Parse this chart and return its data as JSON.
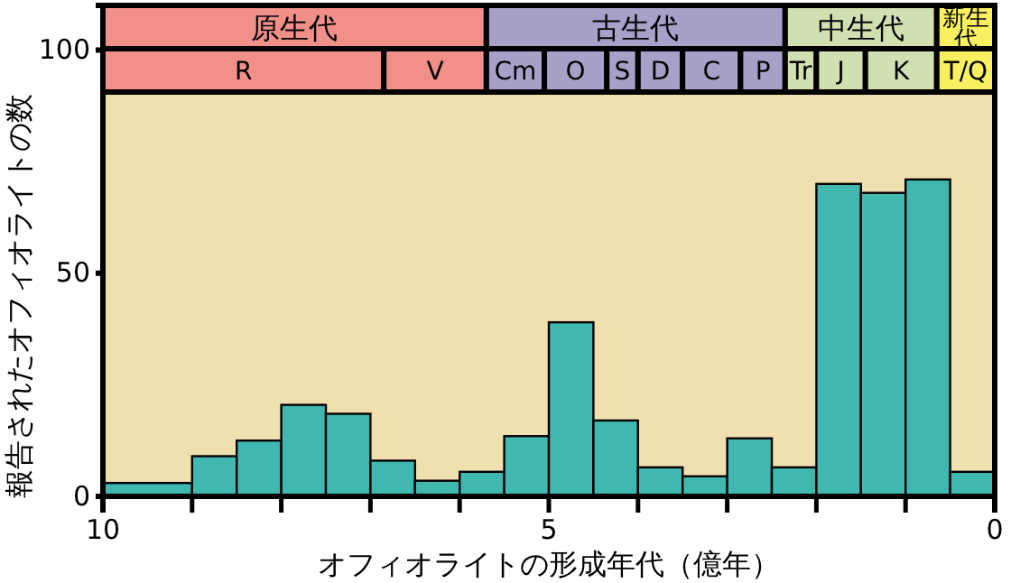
{
  "chart_data": {
    "type": "histogram",
    "xlabel": "オフィオライトの形成年代（億年）",
    "ylabel": "報告されたオフィオライトの数",
    "bins": [
      10,
      9,
      8.5,
      8,
      7.5,
      7,
      6.5,
      6,
      5.5,
      5,
      4.5,
      4,
      3.5,
      3,
      2.5,
      2,
      1.5,
      1,
      0.5,
      0
    ],
    "values": [
      3,
      9,
      12.5,
      20.5,
      18.5,
      8,
      3.5,
      5.5,
      13.5,
      39,
      17,
      6.5,
      4.5,
      13,
      6.5,
      70,
      68,
      71,
      5.5
    ],
    "color": "#40b8b0",
    "xlim": [
      10,
      0
    ],
    "xticks": [
      10,
      {
        "value": 9,
        "label": null
      },
      {
        "value": 8,
        "label": null
      },
      {
        "value": 7,
        "label": null
      },
      {
        "value": 6,
        "label": null
      },
      5,
      {
        "value": 4,
        "label": null
      },
      {
        "value": 3,
        "label": null
      },
      {
        "value": 2,
        "label": null
      },
      {
        "value": 1,
        "label": null
      },
      0
    ],
    "ylim": [
      0,
      110
    ],
    "yticks": [
      0,
      50,
      100
    ],
    "bands": [
      {
        "axis": "x",
        "from": 10,
        "to": 5.7,
        "label": "原生代",
        "color": "#f09088"
      },
      {
        "axis": "x",
        "from": 5.7,
        "to": 2.35,
        "label": "古生代",
        "color": "#a8a0c8"
      },
      {
        "axis": "x",
        "from": 2.35,
        "to": 0.65,
        "label": "中生代",
        "color": "#d0e0b0"
      },
      {
        "axis": "x",
        "from": 0.65,
        "to": 0,
        "label": "新生代",
        "color": "#f8f060"
      },
      {
        "axis": "x",
        "from": 10,
        "to": 6.85,
        "label": "R",
        "color": "#f09088"
      },
      {
        "axis": "x",
        "from": 6.85,
        "to": 5.7,
        "label": "V",
        "color": "#f09088"
      },
      {
        "axis": "x",
        "from": 5.7,
        "to": 5.05,
        "label": "Cm",
        "color": "#a8a0c8"
      },
      {
        "axis": "x",
        "from": 5.05,
        "to": 4.35,
        "label": "O",
        "color": "#a8a0c8"
      },
      {
        "axis": "x",
        "from": 4.35,
        "to": 4.0,
        "label": "S",
        "color": "#a8a0c8"
      },
      {
        "axis": "x",
        "from": 4.0,
        "to": 3.5,
        "label": "D",
        "color": "#a8a0c8"
      },
      {
        "axis": "x",
        "from": 3.5,
        "to": 2.85,
        "label": "C",
        "color": "#a8a0c8"
      },
      {
        "axis": "x",
        "from": 2.85,
        "to": 2.35,
        "label": "P",
        "color": "#a8a0c8"
      },
      {
        "axis": "x",
        "from": 2.35,
        "to": 2.0,
        "label": "Tr",
        "color": "#d0e0b0"
      },
      {
        "axis": "x",
        "from": 2.0,
        "to": 1.45,
        "label": "J",
        "color": "#d0e0b0"
      },
      {
        "axis": "x",
        "from": 1.45,
        "to": 0.65,
        "label": "K",
        "color": "#d0e0b0"
      },
      {
        "axis": "x",
        "from": 0.65,
        "to": 0,
        "label": "T/Q",
        "color": "#f8f060"
      }
    ]
  }
}
